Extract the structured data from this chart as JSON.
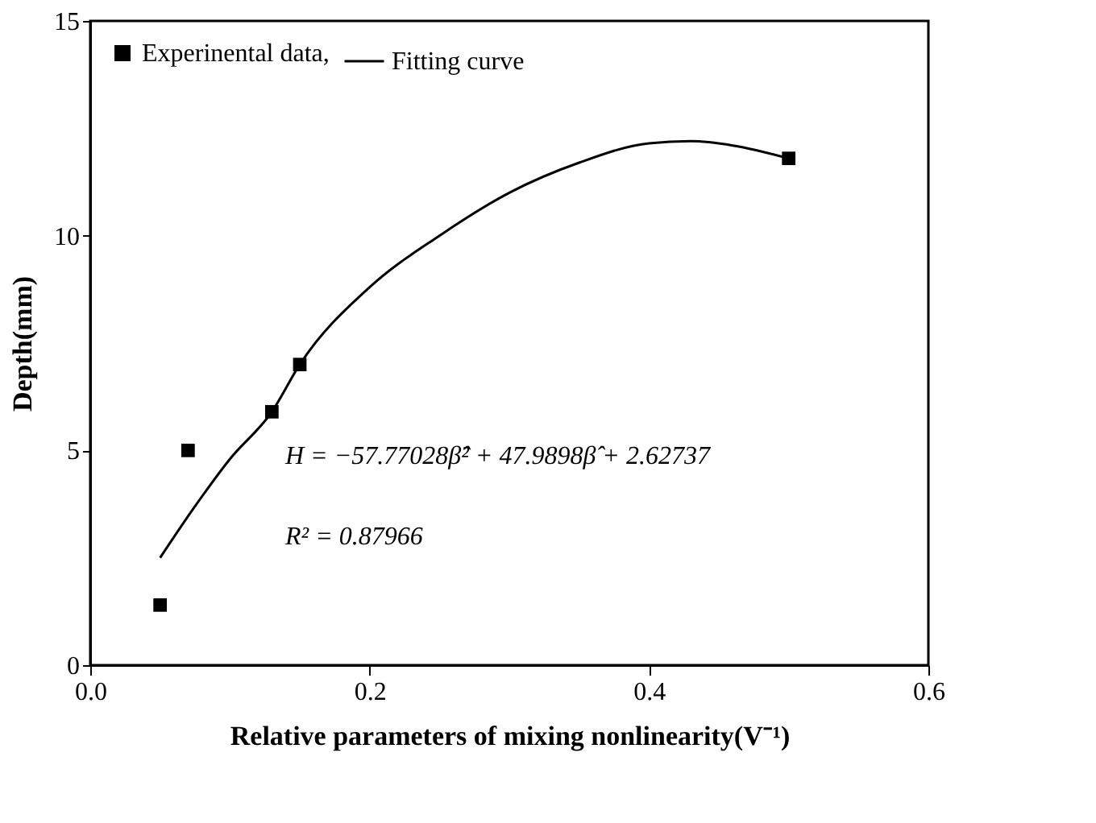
{
  "chart_data": {
    "type": "scatter",
    "xlabel": "Relative parameters of mixing nonlinearity(V⁻¹)",
    "ylabel": "Depth(mm)",
    "xlim": [
      0.0,
      0.6
    ],
    "xticks": [
      {
        "value": 0.0,
        "label": "0.0"
      },
      0.2,
      0.4,
      0.6
    ],
    "ylim": [
      0,
      15
    ],
    "yticks": [
      0,
      5,
      10,
      15
    ],
    "grid": false,
    "legend": "top left",
    "series": [
      {
        "name": "Experinental data,",
        "marker": "square",
        "color": "#000000",
        "x": [
          0.05,
          0.07,
          0.13,
          0.15,
          0.5
        ],
        "values": [
          1.4,
          5.0,
          5.9,
          7.0,
          11.8
        ]
      },
      {
        "name": "Fitting curve",
        "type": "line",
        "line_style": "solid",
        "color": "#000000",
        "x": [
          0.05,
          0.075,
          0.1,
          0.13,
          0.15,
          0.2,
          0.25,
          0.3,
          0.35,
          0.4,
          0.43,
          0.46,
          0.5
        ],
        "values": [
          2.5,
          3.7,
          4.8,
          5.9,
          7.0,
          8.8,
          10.0,
          11.0,
          11.7,
          12.15,
          12.2,
          12.1,
          11.8
        ]
      }
    ],
    "annotations": [
      "H = −57.77028β̂² + 47.9898β̂ + 2.62737",
      "R² = 0.87966"
    ]
  }
}
